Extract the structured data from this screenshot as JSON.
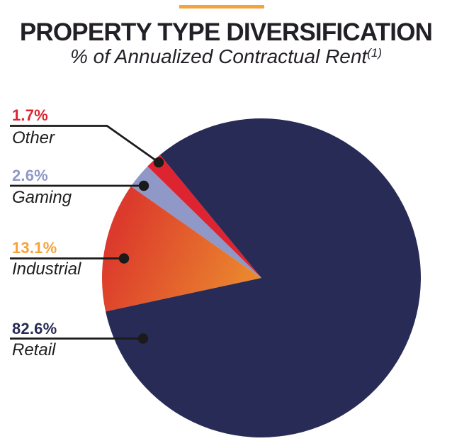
{
  "header": {
    "accent_color": "#F6A23C",
    "title": "PROPERTY TYPE DIVERSIFICATION",
    "subtitle": "% of Annualized Contractual Rent",
    "footnote_marker": "(1)"
  },
  "chart_data": {
    "type": "pie",
    "title": "PROPERTY TYPE DIVERSIFICATION",
    "subtitle": "% of Annualized Contractual Rent(1)",
    "unit": "% of annualized contractual rent",
    "start_angle_deg": 129.5,
    "direction": "counterclockwise",
    "legend_position": "left-callouts",
    "series": [
      {
        "label": "Other",
        "value": 1.7,
        "display": "1.7%",
        "color": "#DE2430",
        "label_color": "#DE2430"
      },
      {
        "label": "Gaming",
        "value": 2.6,
        "display": "2.6%",
        "color": "#8F98C6",
        "label_color": "#8F98C6"
      },
      {
        "label": "Industrial",
        "value": 13.1,
        "display": "13.1%",
        "color": {
          "gradient_from": "#DC3A2C",
          "gradient_to": "#EB8A2E"
        },
        "label_color": "#F6A23C"
      },
      {
        "label": "Retail",
        "value": 82.6,
        "display": "82.6%",
        "color": "#282B55",
        "label_color": "#282B55"
      }
    ],
    "leader_line_color": "#1A1A1A",
    "category_label_color": "#1E1E1E"
  }
}
